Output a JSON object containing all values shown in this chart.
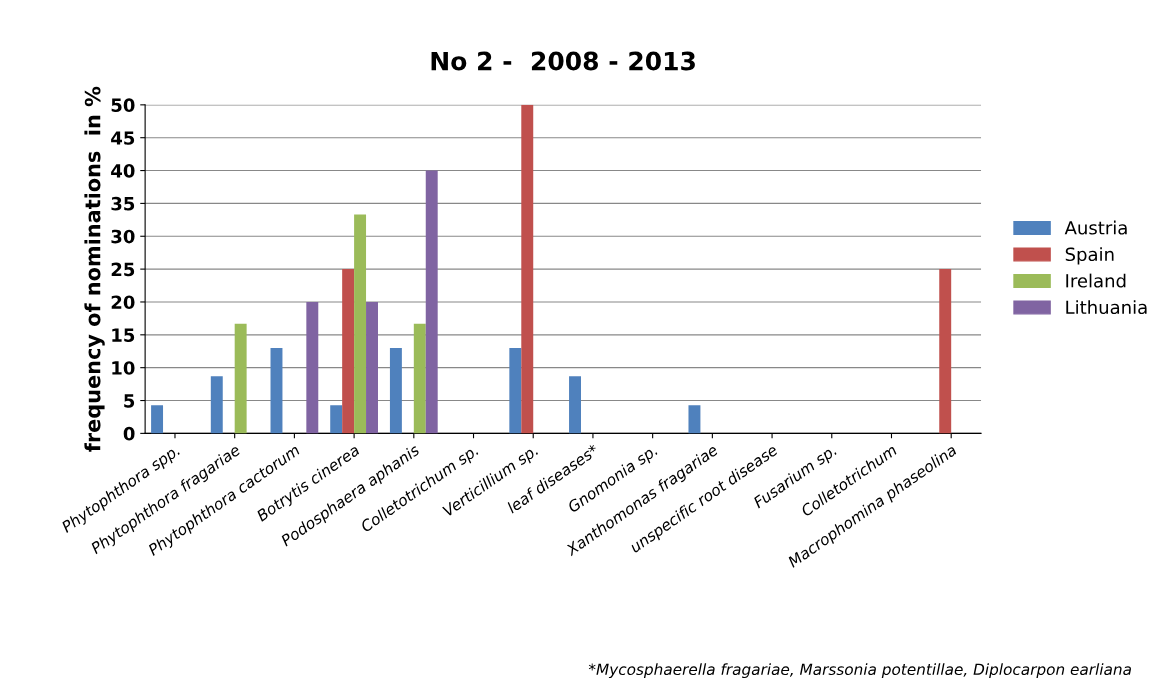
{
  "chart_data": {
    "type": "bar",
    "title": "No 2 -  2008 - 2013",
    "ylabel": "frequency of nominations  in %",
    "categories": [
      "Phytophthora spp.",
      "Phytophthora fragariae",
      "Phytophthora cactorum",
      "Botrytis cinerea",
      "Podosphaera aphanis",
      "Colletotrichum sp.",
      "Verticillium sp.",
      "leaf diseases*",
      "Gnomonia sp.",
      "Xanthomonas fragariae",
      "unspecific root disease",
      "Fusarium sp.",
      "Colletotrichum",
      "Macrophomina phaseolina"
    ],
    "series": [
      {
        "name": "Austria",
        "color": "#4f81bd",
        "values": [
          4.3,
          8.7,
          13,
          4.3,
          13,
          0,
          13,
          8.7,
          0,
          4.3,
          0,
          0,
          0,
          0
        ]
      },
      {
        "name": "Spain",
        "color": "#c0504d",
        "values": [
          0,
          0,
          0,
          25,
          0,
          0,
          50,
          0,
          0,
          0,
          0,
          0,
          0,
          25
        ]
      },
      {
        "name": "Ireland",
        "color": "#9bbb59",
        "values": [
          0,
          16.7,
          0,
          33.3,
          16.7,
          0,
          0,
          0,
          0,
          0,
          0,
          0,
          0,
          0
        ]
      },
      {
        "name": "Lithuania",
        "color": "#8064a2",
        "values": [
          0,
          0,
          20,
          20,
          40,
          0,
          0,
          0,
          0,
          0,
          0,
          0,
          0,
          0
        ]
      }
    ],
    "ylim": [
      0,
      50
    ],
    "yticks": [
      0,
      5,
      10,
      15,
      20,
      25,
      30,
      35,
      40,
      45,
      50
    ],
    "grid": "y",
    "legend": "right",
    "annotations": [
      "*Mycosphaerella fragariae, Marssonia potentillae, Diplocarpon earliana"
    ]
  }
}
